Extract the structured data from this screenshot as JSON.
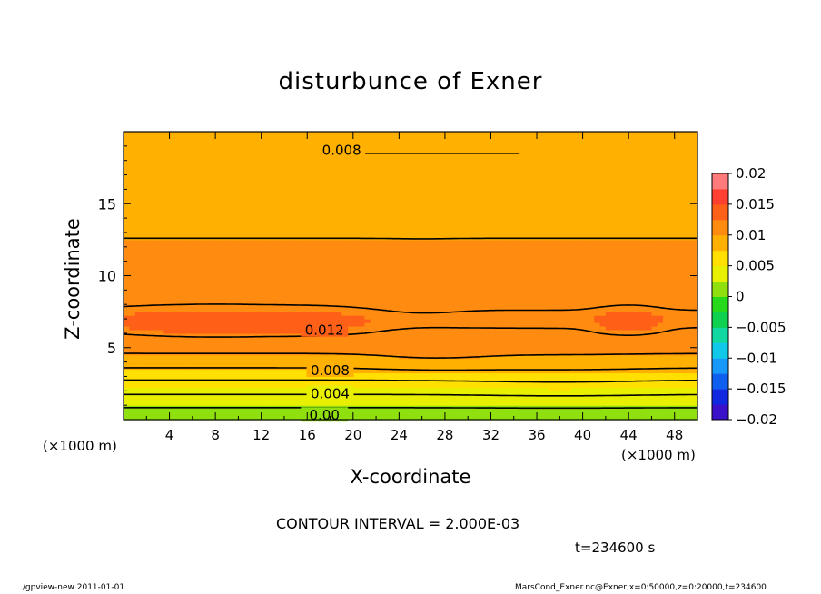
{
  "chart_data": {
    "type": "heatmap",
    "subtype": "filled-contour",
    "title": "disturbunce of Exner",
    "xlabel": "X-coordinate",
    "ylabel": "Z-coordinate",
    "x_unit": "(×1000 m)",
    "y_unit": "(×1000 m)",
    "xlim": [
      0,
      50
    ],
    "ylim": [
      0,
      20
    ],
    "x_ticks": [
      4,
      8,
      12,
      16,
      20,
      24,
      28,
      32,
      36,
      40,
      44,
      48
    ],
    "y_ticks": [
      5,
      10,
      15
    ],
    "contour_interval_text": "CONTOUR INTERVAL = 2.000E-03",
    "time_text": "t=234600 s",
    "colorbar": {
      "levels": [
        -0.02,
        -0.0175,
        -0.015,
        -0.0125,
        -0.01,
        -0.0075,
        -0.005,
        -0.0025,
        0,
        0.0025,
        0.005,
        0.0075,
        0.01,
        0.0125,
        0.015,
        0.0175,
        0.02
      ],
      "colors": [
        "#7a10b0",
        "#3a10c8",
        "#1028e0",
        "#1060f0",
        "#1898f8",
        "#10c8e8",
        "#10d8a0",
        "#10d050",
        "#28d81a",
        "#90e010",
        "#e8f000",
        "#ffe000",
        "#ffb000",
        "#ff8c10",
        "#ff6018",
        "#ff4030",
        "#ff7a7a",
        "#ffb0b0"
      ],
      "tick_labels": [
        "0.02",
        "0.015",
        "0.01",
        "0.005",
        "0",
        "−0.005",
        "−0.01",
        "−0.015",
        "−0.02"
      ]
    },
    "contour_labels": [
      "0.008",
      "0.012",
      "0.008",
      "0.004",
      "0.00"
    ],
    "vertical_profile": {
      "z": [
        0,
        0.5,
        1,
        1.5,
        2,
        2.5,
        3,
        3.5,
        4,
        4.5,
        5,
        6,
        7,
        8,
        10,
        12,
        13,
        15,
        16,
        18,
        19,
        20
      ],
      "value": [
        0.0,
        0.001,
        0.0025,
        0.0035,
        0.0045,
        0.0055,
        0.0065,
        0.0078,
        0.0088,
        0.0098,
        0.0108,
        0.0118,
        0.0123,
        0.0118,
        0.0112,
        0.0103,
        0.0098,
        0.0092,
        0.0087,
        0.0081,
        0.0079,
        0.0077
      ]
    },
    "grid": false
  },
  "footer": {
    "left": "./gpview-new   2011-01-01",
    "right": "MarsCond_Exner.nc@Exner,x=0:50000,z=0:20000,t=234600"
  }
}
